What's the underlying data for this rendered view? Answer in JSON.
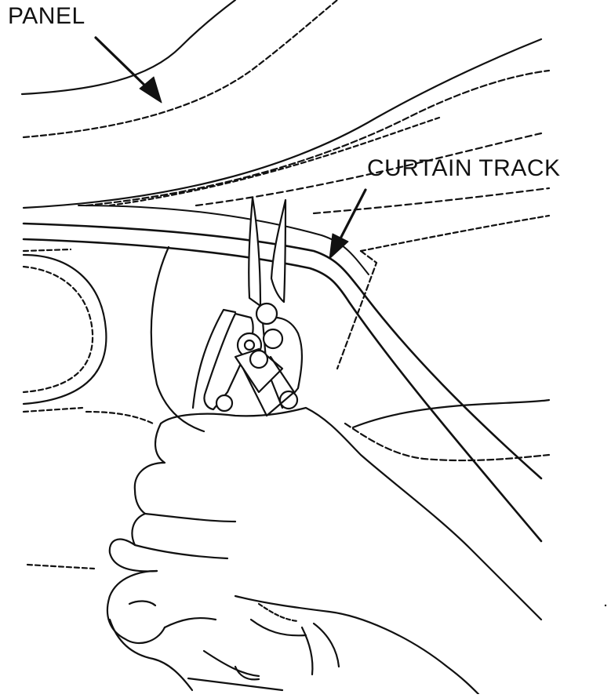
{
  "labels": {
    "panel": "PANEL",
    "curtain_track": "CURTAIN TRACK"
  },
  "colors": {
    "line": "#111111",
    "background": "#ffffff"
  }
}
